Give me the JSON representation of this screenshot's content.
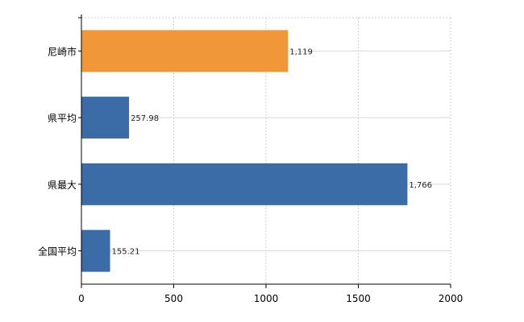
{
  "chart_data": {
    "type": "bar",
    "orientation": "horizontal",
    "categories": [
      "尼崎市",
      "県平均",
      "県最大",
      "全国平均"
    ],
    "values": [
      1119,
      257.98,
      1766,
      155.21
    ],
    "value_labels": [
      "1,119",
      "257.98",
      "1,766",
      "155.21"
    ],
    "bar_colors": [
      "#f0973a",
      "#3c6ca8",
      "#3c6ca8",
      "#3c6ca8"
    ],
    "xlim": [
      0,
      2000
    ],
    "xticks": [
      0,
      500,
      1000,
      1500,
      2000
    ],
    "xtick_labels": [
      "0",
      "500",
      "1000",
      "1500",
      "2000"
    ],
    "grid": true,
    "title": "",
    "xlabel": "",
    "ylabel": ""
  }
}
